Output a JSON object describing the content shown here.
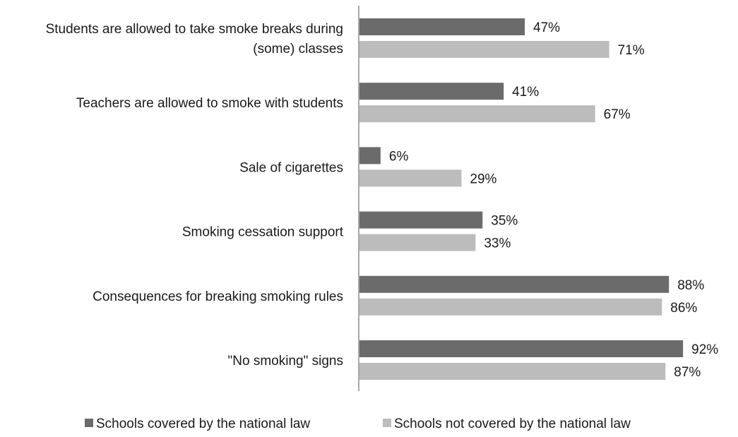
{
  "chart_data": {
    "type": "bar",
    "orientation": "horizontal",
    "categories": [
      [
        "Students are allowed to take smoke breaks during",
        "(some) classes"
      ],
      [
        "Teachers are allowed to smoke with students"
      ],
      [
        "Sale of cigarettes"
      ],
      [
        "Smoking cessation support"
      ],
      [
        "Consequences for breaking smoking rules"
      ],
      [
        "\"No smoking\" signs"
      ]
    ],
    "series": [
      {
        "name": "Schools covered by the national law",
        "color": "#6b6b6b",
        "values": [
          47,
          41,
          6,
          35,
          88,
          92
        ],
        "labels": [
          "47%",
          "41%",
          "6%",
          "35%",
          "88%",
          "92%"
        ]
      },
      {
        "name": "Schools not covered by the national law",
        "color": "#bcbcbc",
        "values": [
          71,
          67,
          29,
          33,
          86,
          87
        ],
        "labels": [
          "71%",
          "67%",
          "29%",
          "33%",
          "86%",
          "87%"
        ]
      }
    ],
    "xlim": [
      0,
      100
    ],
    "grid": false,
    "legend_position": "bottom",
    "axis_color": "#8c8c8c"
  }
}
